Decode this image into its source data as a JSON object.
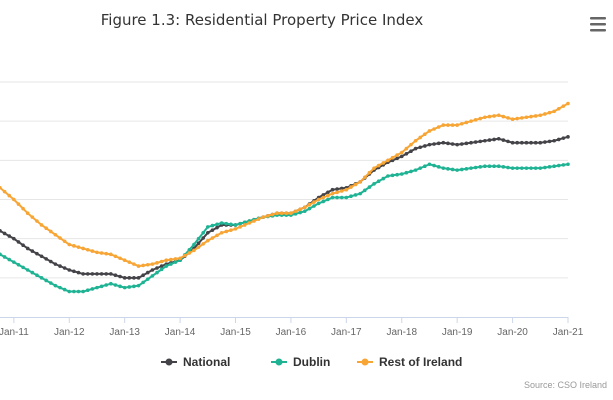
{
  "chart_data": {
    "type": "line",
    "title": "Figure 1.3: Residential Property Price Index",
    "x_tick_labels": [
      "Jan-11",
      "Jan-12",
      "Jan-13",
      "Jan-14",
      "Jan-15",
      "Jan-16",
      "Jan-17",
      "Jan-18",
      "Jan-19",
      "Jan-20",
      "Jan-21"
    ],
    "xlim": [
      2010.75,
      2021.0
    ],
    "ylim": [
      40,
      160
    ],
    "y_grid": [
      60,
      80,
      100,
      120,
      140,
      160
    ],
    "y_tick_labels_visible": false,
    "legend_position": "bottom",
    "credit": "Source: CSO Ireland",
    "colors": {
      "national": "#434348",
      "dublin": "#1fb394",
      "rest": "#f7a535",
      "grid": "#e6e6e6",
      "axis": "#ccd6eb"
    },
    "series": [
      {
        "name": "National",
        "color": "#434348",
        "points": [
          [
            2010.75,
            84
          ],
          [
            2011.0,
            80
          ],
          [
            2011.25,
            75
          ],
          [
            2011.5,
            71
          ],
          [
            2011.75,
            67
          ],
          [
            2012.0,
            64
          ],
          [
            2012.25,
            62
          ],
          [
            2012.5,
            62
          ],
          [
            2012.75,
            62
          ],
          [
            2013.0,
            60
          ],
          [
            2013.25,
            60
          ],
          [
            2013.5,
            64
          ],
          [
            2013.75,
            67
          ],
          [
            2014.0,
            69
          ],
          [
            2014.25,
            75
          ],
          [
            2014.5,
            83
          ],
          [
            2014.75,
            87
          ],
          [
            2015.0,
            87
          ],
          [
            2015.25,
            89
          ],
          [
            2015.5,
            91
          ],
          [
            2015.75,
            93
          ],
          [
            2016.0,
            93
          ],
          [
            2016.25,
            96
          ],
          [
            2016.5,
            101
          ],
          [
            2016.75,
            105
          ],
          [
            2017.0,
            106
          ],
          [
            2017.25,
            109
          ],
          [
            2017.5,
            115
          ],
          [
            2017.75,
            119
          ],
          [
            2018.0,
            122
          ],
          [
            2018.25,
            126
          ],
          [
            2018.5,
            128
          ],
          [
            2018.75,
            129
          ],
          [
            2019.0,
            128
          ],
          [
            2019.25,
            129
          ],
          [
            2019.5,
            130
          ],
          [
            2019.75,
            131
          ],
          [
            2020.0,
            129
          ],
          [
            2020.25,
            129
          ],
          [
            2020.5,
            129
          ],
          [
            2020.75,
            130
          ],
          [
            2021.0,
            132
          ]
        ]
      },
      {
        "name": "Dublin",
        "color": "#1fb394",
        "points": [
          [
            2010.75,
            72
          ],
          [
            2011.0,
            68
          ],
          [
            2011.25,
            64
          ],
          [
            2011.5,
            60
          ],
          [
            2011.75,
            56
          ],
          [
            2012.0,
            53
          ],
          [
            2012.25,
            53
          ],
          [
            2012.5,
            55
          ],
          [
            2012.75,
            57
          ],
          [
            2013.0,
            55
          ],
          [
            2013.25,
            56
          ],
          [
            2013.5,
            61
          ],
          [
            2013.75,
            66
          ],
          [
            2014.0,
            69
          ],
          [
            2014.25,
            77
          ],
          [
            2014.5,
            86
          ],
          [
            2014.75,
            88
          ],
          [
            2015.0,
            87
          ],
          [
            2015.25,
            89
          ],
          [
            2015.5,
            91
          ],
          [
            2015.75,
            92
          ],
          [
            2016.0,
            92
          ],
          [
            2016.25,
            94
          ],
          [
            2016.5,
            98
          ],
          [
            2016.75,
            101
          ],
          [
            2017.0,
            101
          ],
          [
            2017.25,
            103
          ],
          [
            2017.5,
            108
          ],
          [
            2017.75,
            112
          ],
          [
            2018.0,
            113
          ],
          [
            2018.25,
            115
          ],
          [
            2018.5,
            118
          ],
          [
            2018.75,
            116
          ],
          [
            2019.0,
            115
          ],
          [
            2019.25,
            116
          ],
          [
            2019.5,
            117
          ],
          [
            2019.75,
            117
          ],
          [
            2020.0,
            116
          ],
          [
            2020.25,
            116
          ],
          [
            2020.5,
            116
          ],
          [
            2020.75,
            117
          ],
          [
            2021.0,
            118
          ]
        ]
      },
      {
        "name": "Rest of Ireland",
        "color": "#f7a535",
        "points": [
          [
            2010.75,
            106
          ],
          [
            2011.0,
            100
          ],
          [
            2011.25,
            93
          ],
          [
            2011.5,
            87
          ],
          [
            2011.75,
            82
          ],
          [
            2012.0,
            77
          ],
          [
            2012.25,
            75
          ],
          [
            2012.5,
            73
          ],
          [
            2012.75,
            72
          ],
          [
            2013.0,
            69
          ],
          [
            2013.25,
            66
          ],
          [
            2013.5,
            67
          ],
          [
            2013.75,
            69
          ],
          [
            2014.0,
            70
          ],
          [
            2014.25,
            74
          ],
          [
            2014.5,
            79
          ],
          [
            2014.75,
            83
          ],
          [
            2015.0,
            85
          ],
          [
            2015.25,
            88
          ],
          [
            2015.5,
            91
          ],
          [
            2015.75,
            93
          ],
          [
            2016.0,
            93
          ],
          [
            2016.25,
            96
          ],
          [
            2016.5,
            100
          ],
          [
            2016.75,
            103
          ],
          [
            2017.0,
            105
          ],
          [
            2017.25,
            109
          ],
          [
            2017.5,
            116
          ],
          [
            2017.75,
            120
          ],
          [
            2018.0,
            124
          ],
          [
            2018.25,
            130
          ],
          [
            2018.5,
            135
          ],
          [
            2018.75,
            138
          ],
          [
            2019.0,
            138
          ],
          [
            2019.25,
            140
          ],
          [
            2019.5,
            142
          ],
          [
            2019.75,
            143
          ],
          [
            2020.0,
            141
          ],
          [
            2020.25,
            142
          ],
          [
            2020.5,
            143
          ],
          [
            2020.75,
            145
          ],
          [
            2021.0,
            149
          ]
        ]
      }
    ]
  },
  "menu": {
    "icon": "hamburger-menu-icon"
  }
}
